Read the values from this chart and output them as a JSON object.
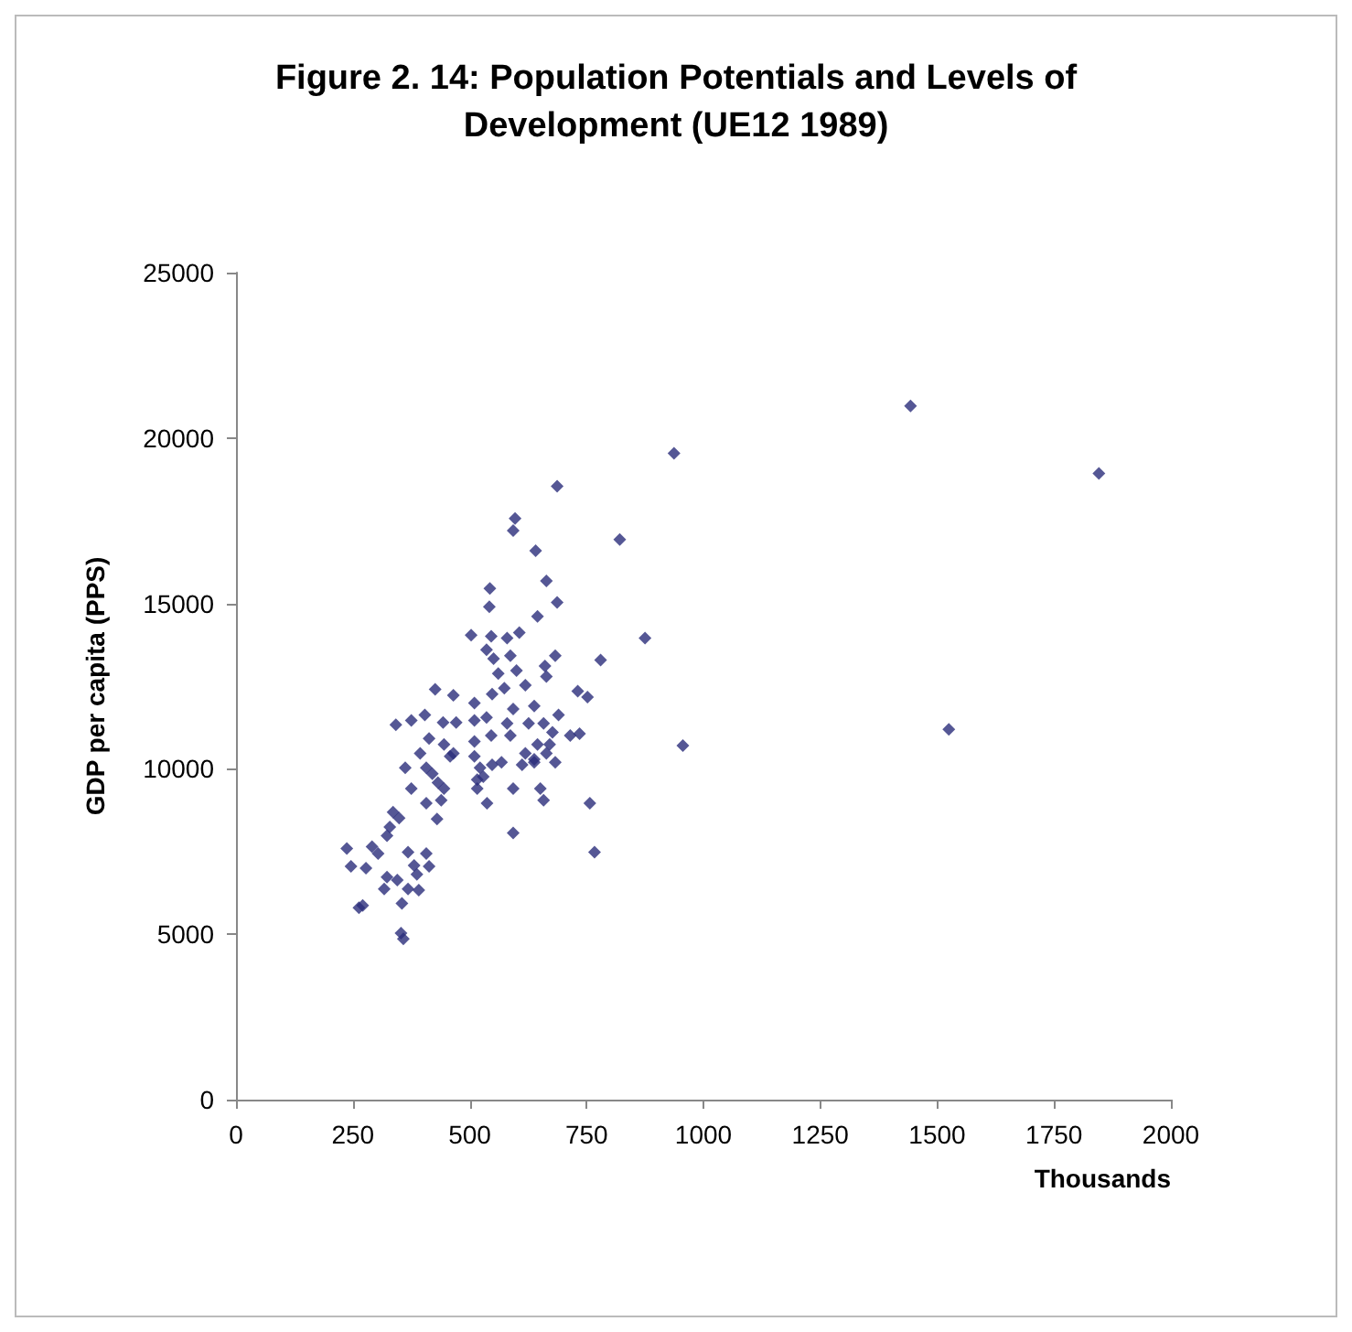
{
  "chart_data": {
    "type": "scatter",
    "title": "Figure 2. 14: Population Potentials and Levels of\nDevelopment (UE12 1989)",
    "xlabel": "Thousands",
    "ylabel": "GDP per capita (PPS)",
    "marker": "diamond",
    "grid": false,
    "xlim": [
      0,
      2000
    ],
    "xticks": [
      0,
      250,
      500,
      750,
      1000,
      1250,
      1500,
      1750,
      2000
    ],
    "ylim": [
      0,
      25000
    ],
    "yticks": [
      0,
      5000,
      10000,
      15000,
      20000,
      25000
    ],
    "series": [
      {
        "color": "#2b2d7a",
        "x": [
          1443,
          1846,
          1525,
          937,
          821,
          875,
          956,
          687,
          597,
          593,
          641,
          543,
          664,
          542,
          687,
          645,
          503,
          546,
          580,
          606,
          780,
          536,
          551,
          587,
          683,
          661,
          561,
          600,
          619,
          664,
          731,
          752,
          426,
          465,
          510,
          548,
          574,
          593,
          638,
          690,
          342,
          375,
          404,
          443,
          471,
          510,
          536,
          580,
          626,
          658,
          677,
          715,
          735,
          413,
          445,
          510,
          546,
          587,
          645,
          671,
          394,
          458,
          465,
          510,
          619,
          638,
          664,
          683,
          362,
          407,
          420,
          522,
          548,
          568,
          612,
          638,
          432,
          445,
          516,
          529,
          375,
          516,
          407,
          439,
          537,
          593,
          651,
          658,
          757,
          336,
          349,
          430,
          329,
          323,
          593,
          767,
          237,
          291,
          304,
          368,
          407,
          246,
          278,
          381,
          413,
          323,
          345,
          387,
          317,
          368,
          391,
          355,
          263,
          271,
          353,
          358
        ],
        "values": [
          20970,
          18930,
          11190,
          19540,
          16930,
          13950,
          10700,
          18540,
          17570,
          17200,
          16590,
          15450,
          15680,
          14900,
          15030,
          14610,
          14040,
          14010,
          13950,
          14120,
          13290,
          13600,
          13330,
          13420,
          13420,
          13110,
          12880,
          12970,
          12530,
          12790,
          12350,
          12170,
          12400,
          12220,
          11990,
          12260,
          12440,
          11810,
          11900,
          11630,
          11330,
          11460,
          11630,
          11400,
          11400,
          11460,
          11550,
          11370,
          11370,
          11370,
          11100,
          11010,
          11060,
          10920,
          10740,
          10830,
          11010,
          11010,
          10740,
          10740,
          10470,
          10380,
          10470,
          10380,
          10470,
          10290,
          10470,
          10200,
          10030,
          10030,
          9850,
          10030,
          10120,
          10200,
          10120,
          10200,
          9580,
          9400,
          9670,
          9760,
          9400,
          9400,
          8960,
          9050,
          8960,
          9400,
          9400,
          9050,
          8960,
          8690,
          8510,
          8480,
          8240,
          7980,
          8060,
          7480,
          7590,
          7650,
          7440,
          7480,
          7440,
          7050,
          7000,
          7080,
          7050,
          6730,
          6640,
          6810,
          6370,
          6370,
          6330,
          5930,
          5800,
          5870,
          5030,
          4860
        ]
      }
    ]
  }
}
